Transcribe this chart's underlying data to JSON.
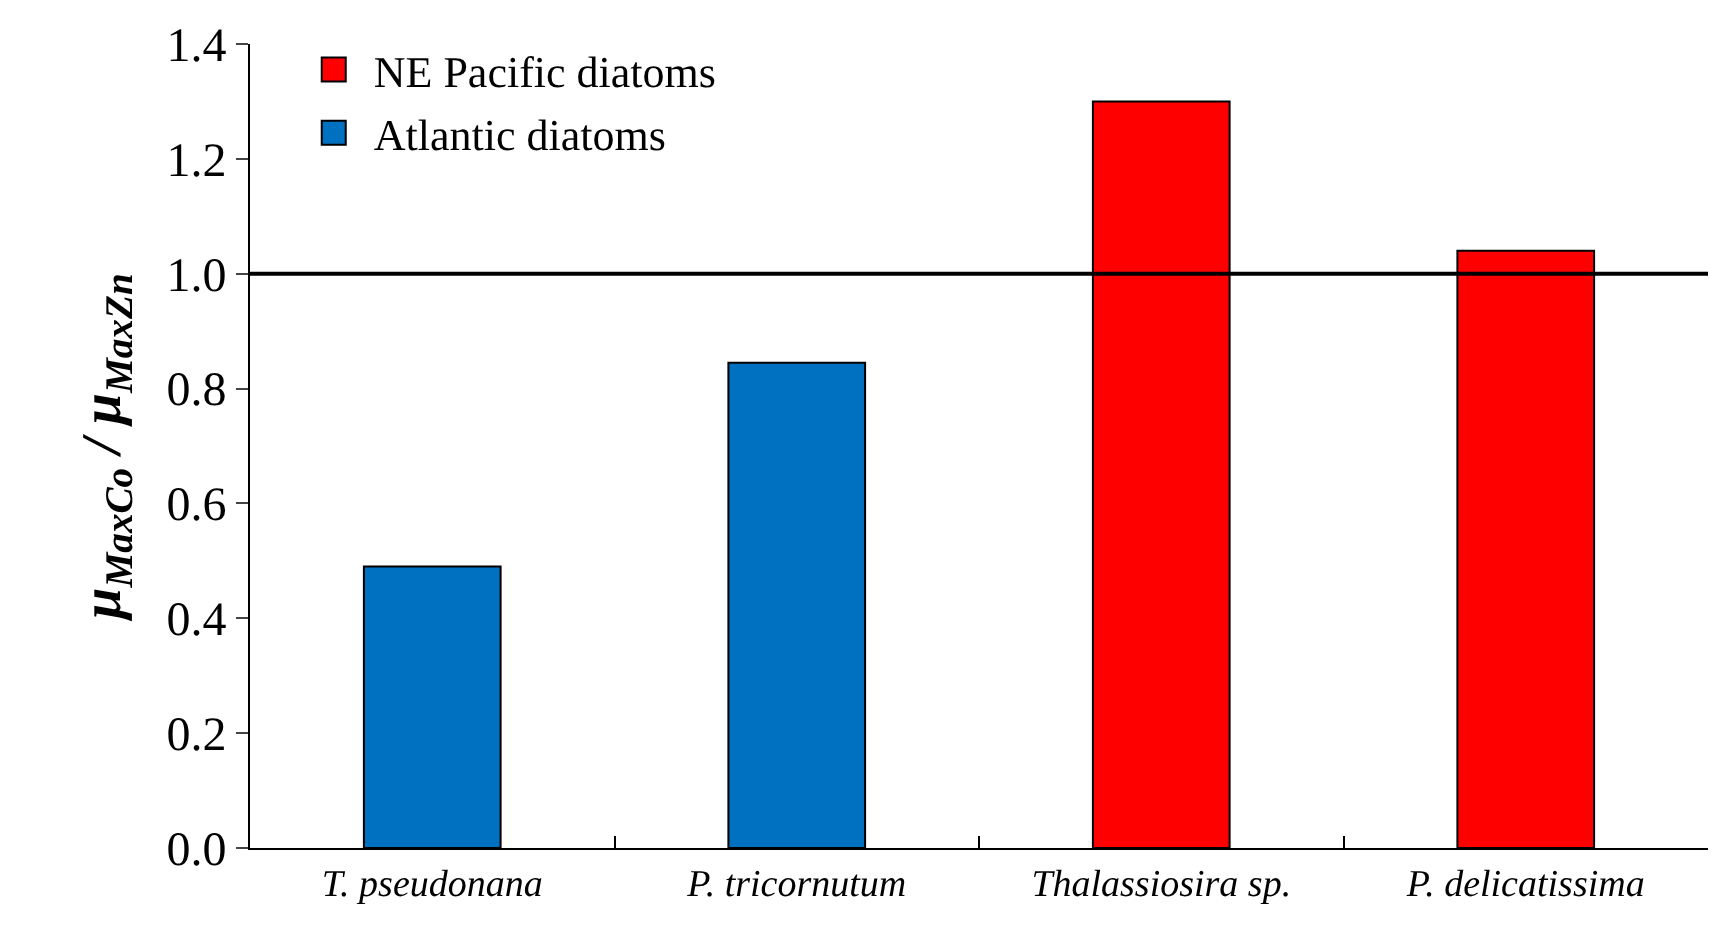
{
  "chart_data": {
    "type": "bar",
    "ylabel": "μ$_{MaxCo}$ / μ$_{MaxZn}$",
    "categories": [
      "T. pseudonana",
      "P. tricornutum",
      "Thalassiosira sp.",
      "P. delicatissima"
    ],
    "series": [
      {
        "name": "NE Pacific diatoms",
        "color": "#ff0000",
        "values": [
          null,
          null,
          1.3,
          1.04
        ]
      },
      {
        "name": "Atlantic diatoms",
        "color": "#0070c0",
        "values": [
          0.49,
          0.845,
          null,
          null
        ]
      }
    ],
    "ylim": [
      0,
      1.4
    ],
    "yticks": [
      {
        "value": 0,
        "label": "0.0"
      },
      0.2,
      0.4,
      0.6,
      0.8,
      {
        "value": 1,
        "label": "1.0"
      },
      1.2,
      1.4
    ],
    "ref_lines": [
      {
        "axis": "y",
        "value": 1,
        "color": "#000000",
        "line_style": "solid"
      }
    ],
    "grid": false,
    "legend": "top left"
  }
}
